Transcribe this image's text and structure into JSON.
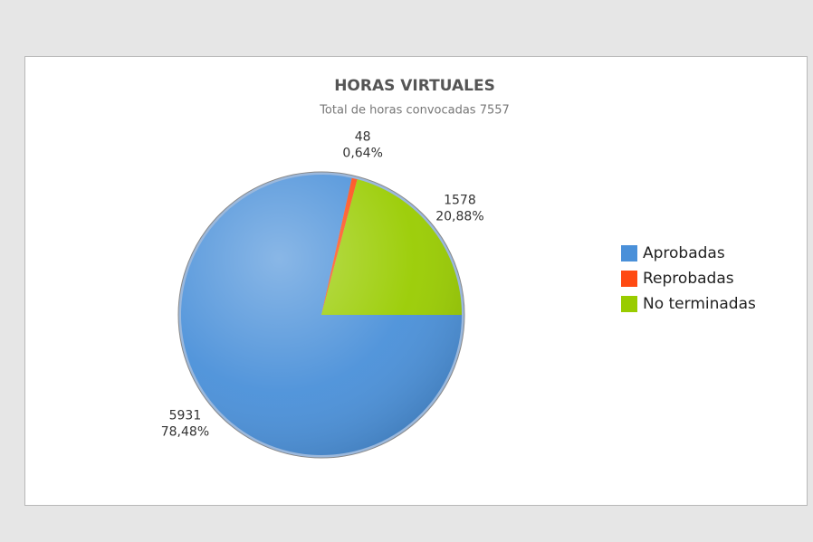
{
  "chart_data": {
    "type": "pie",
    "title": "HORAS VIRTUALES",
    "subtitle": "Total de horas convocadas 7557",
    "categories": [
      "Aprobadas",
      "Reprobadas",
      "No terminadas"
    ],
    "values": [
      5931,
      48,
      1578
    ],
    "percent_labels": [
      "78,48%",
      "0,64%",
      "20,88%"
    ],
    "colors": [
      "#4a90d9",
      "#ff4a12",
      "#99cc00"
    ],
    "legend": "right"
  }
}
